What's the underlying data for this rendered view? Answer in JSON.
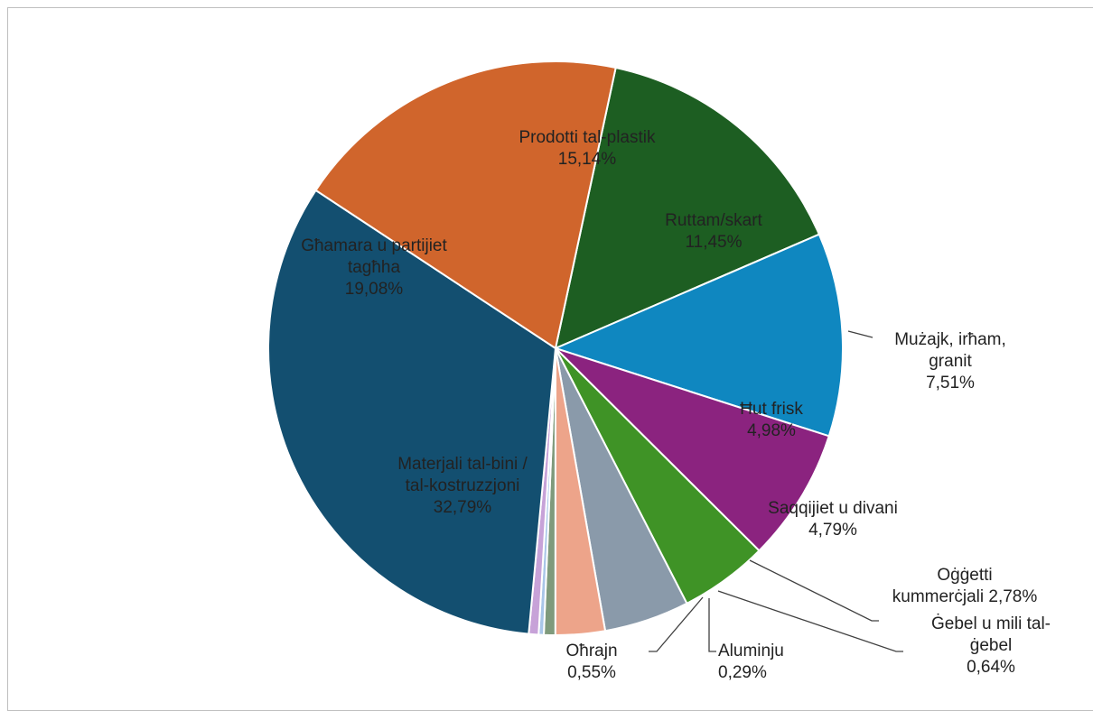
{
  "chart_data": {
    "type": "pie",
    "title": "",
    "slices": [
      {
        "label": [
          "Prodotti tal-plastik"
        ],
        "value": 15.14,
        "value_label": "15,14%",
        "color": "#1d5e22"
      },
      {
        "label": [
          "Ruttam/skart"
        ],
        "value": 11.45,
        "value_label": "11,45%",
        "color": "#0f87c0"
      },
      {
        "label": [
          "Mużajk, irħam,",
          "granit"
        ],
        "value": 7.51,
        "value_label": "7,51%",
        "color": "#8b237f"
      },
      {
        "label": [
          "Ħut frisk"
        ],
        "value": 4.98,
        "value_label": "4,98%",
        "color": "#3f9326"
      },
      {
        "label": [
          "Saqqijiet u divani"
        ],
        "value": 4.79,
        "value_label": "4,79%",
        "color": "#8a9aaa"
      },
      {
        "label": [
          "Oġġetti",
          "kummerċjali"
        ],
        "value": 2.78,
        "value_label": "2,78%",
        "color": "#eda48a"
      },
      {
        "label": [
          "Ġebel u mili tal-",
          "ġebel"
        ],
        "value": 0.64,
        "value_label": "0,64%",
        "color": "#7f9a7c"
      },
      {
        "label": [
          "Aluminju"
        ],
        "value": 0.29,
        "value_label": "0,29%",
        "color": "#a9c6e8"
      },
      {
        "label": [
          "Oħrajn"
        ],
        "value": 0.55,
        "value_label": "0,55%",
        "color": "#c7a2d8"
      },
      {
        "label": [
          "Materjali tal-bini /",
          "tal-kostruzzjoni"
        ],
        "value": 32.79,
        "value_label": "32,79%",
        "color": "#134f70"
      },
      {
        "label": [
          "Għamara u partijiet",
          "tagħha"
        ],
        "value": 19.08,
        "value_label": "19,08%",
        "color": "#d0652c"
      }
    ]
  }
}
